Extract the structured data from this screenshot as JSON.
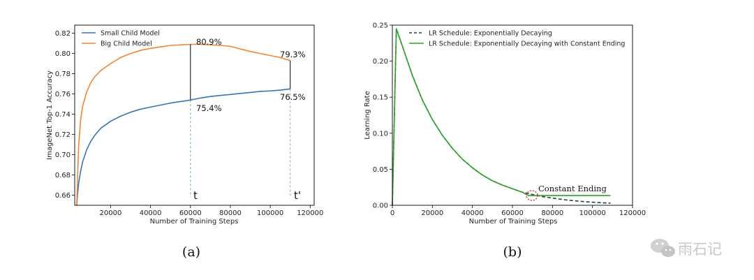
{
  "chart_data": [
    {
      "type": "line",
      "xlabel": "Number of Training Steps",
      "ylabel": "ImageNet Top-1 Accuracy",
      "xlim": [
        2000,
        122000
      ],
      "ylim": [
        0.65,
        0.828
      ],
      "xticks": [
        20000,
        40000,
        60000,
        80000,
        100000,
        120000
      ],
      "xtick_labels": [
        "20000",
        "40000",
        "60000",
        "80000",
        "100000",
        "120000"
      ],
      "yticks": [
        0.66,
        0.68,
        0.7,
        0.72,
        0.74,
        0.76,
        0.78,
        0.8,
        0.82
      ],
      "ytick_labels": [
        "0.66",
        "0.68",
        "0.70",
        "0.72",
        "0.74",
        "0.76",
        "0.78",
        "0.80",
        "0.82"
      ],
      "grid": false,
      "legend_position": "top-left",
      "series": [
        {
          "name": "Small Child Model",
          "color": "#3b75af",
          "x": [
            3000,
            3500,
            4000,
            5000,
            6000,
            8000,
            10000,
            12000,
            15000,
            20000,
            25000,
            30000,
            35000,
            40000,
            45000,
            50000,
            55000,
            60000,
            65000,
            70000,
            75000,
            80000,
            85000,
            90000,
            95000,
            100000,
            105000,
            110000
          ],
          "y": [
            0.65,
            0.662,
            0.672,
            0.684,
            0.693,
            0.705,
            0.713,
            0.719,
            0.726,
            0.733,
            0.738,
            0.742,
            0.745,
            0.747,
            0.749,
            0.751,
            0.7525,
            0.754,
            0.756,
            0.7575,
            0.7585,
            0.7595,
            0.7605,
            0.7615,
            0.7625,
            0.763,
            0.7638,
            0.765
          ]
        },
        {
          "name": "Big Child Model",
          "color": "#ef8636",
          "x": [
            3000,
            3500,
            4000,
            5000,
            6000,
            8000,
            10000,
            12000,
            15000,
            20000,
            25000,
            30000,
            35000,
            40000,
            45000,
            50000,
            55000,
            60000,
            65000,
            70000,
            75000,
            80000,
            85000,
            90000,
            95000,
            100000,
            105000,
            110000
          ],
          "y": [
            0.65,
            0.68,
            0.71,
            0.735,
            0.748,
            0.762,
            0.771,
            0.777,
            0.783,
            0.79,
            0.796,
            0.8,
            0.803,
            0.805,
            0.8065,
            0.808,
            0.8085,
            0.809,
            0.809,
            0.8085,
            0.808,
            0.807,
            0.8045,
            0.802,
            0.8,
            0.798,
            0.796,
            0.793
          ]
        }
      ],
      "annotations": [
        {
          "text": "80.9%",
          "x": 60000,
          "y": 0.809
        },
        {
          "text": "75.4%",
          "x": 60000,
          "y": 0.754
        },
        {
          "text": "79.3%",
          "x": 110000,
          "y": 0.793
        },
        {
          "text": "76.5%",
          "x": 110000,
          "y": 0.765
        },
        {
          "text": "t",
          "x": 60000
        },
        {
          "text": "t'",
          "x": 110000
        }
      ],
      "caption": "(a)"
    },
    {
      "type": "line",
      "xlabel": "Number of Training Steps",
      "ylabel": "Learning Rate",
      "xlim": [
        0,
        120000
      ],
      "ylim": [
        0,
        0.25
      ],
      "xticks": [
        0,
        20000,
        40000,
        60000,
        80000,
        100000,
        120000
      ],
      "xtick_labels": [
        "0",
        "20000",
        "40000",
        "60000",
        "80000",
        "100000",
        "120000"
      ],
      "yticks": [
        0.0,
        0.05,
        0.1,
        0.15,
        0.2,
        0.25
      ],
      "ytick_labels": [
        "0.00",
        "0.05",
        "0.10",
        "0.15",
        "0.20",
        "0.25"
      ],
      "grid": false,
      "legend_position": "top-right",
      "series": [
        {
          "name": "LR Schedule: Exponentially Decaying",
          "color": "#1e4d23",
          "style": "dashed",
          "x": [
            0,
            2000,
            5000,
            10000,
            15000,
            20000,
            25000,
            30000,
            35000,
            40000,
            45000,
            50000,
            55000,
            60000,
            65000,
            70000,
            75000,
            80000,
            85000,
            90000,
            95000,
            100000,
            105000,
            109000
          ],
          "y": [
            0.0,
            0.245,
            0.221,
            0.18,
            0.146,
            0.119,
            0.097,
            0.079,
            0.064,
            0.052,
            0.042,
            0.034,
            0.028,
            0.023,
            0.018,
            0.015,
            0.012,
            0.01,
            0.008,
            0.0065,
            0.0053,
            0.0043,
            0.0035,
            0.003
          ]
        },
        {
          "name": "LR Schedule: Exponentially Decaying with Constant Ending",
          "color": "#2ca02c",
          "style": "solid",
          "x": [
            0,
            2000,
            5000,
            10000,
            15000,
            20000,
            25000,
            30000,
            35000,
            40000,
            45000,
            50000,
            55000,
            60000,
            65000,
            68000,
            75000,
            80000,
            85000,
            90000,
            95000,
            100000,
            105000,
            109000
          ],
          "y": [
            0.0,
            0.245,
            0.221,
            0.18,
            0.146,
            0.119,
            0.097,
            0.079,
            0.064,
            0.052,
            0.042,
            0.034,
            0.028,
            0.023,
            0.018,
            0.0135,
            0.0135,
            0.0135,
            0.0135,
            0.0135,
            0.0135,
            0.0135,
            0.0135,
            0.0135
          ]
        }
      ],
      "annotations": [
        {
          "text": "Constant Ending",
          "x": 68000,
          "y": 0.0135
        }
      ],
      "caption": "(b)"
    }
  ],
  "watermark": {
    "text": "雨石记",
    "icon": "wechat-icon"
  }
}
